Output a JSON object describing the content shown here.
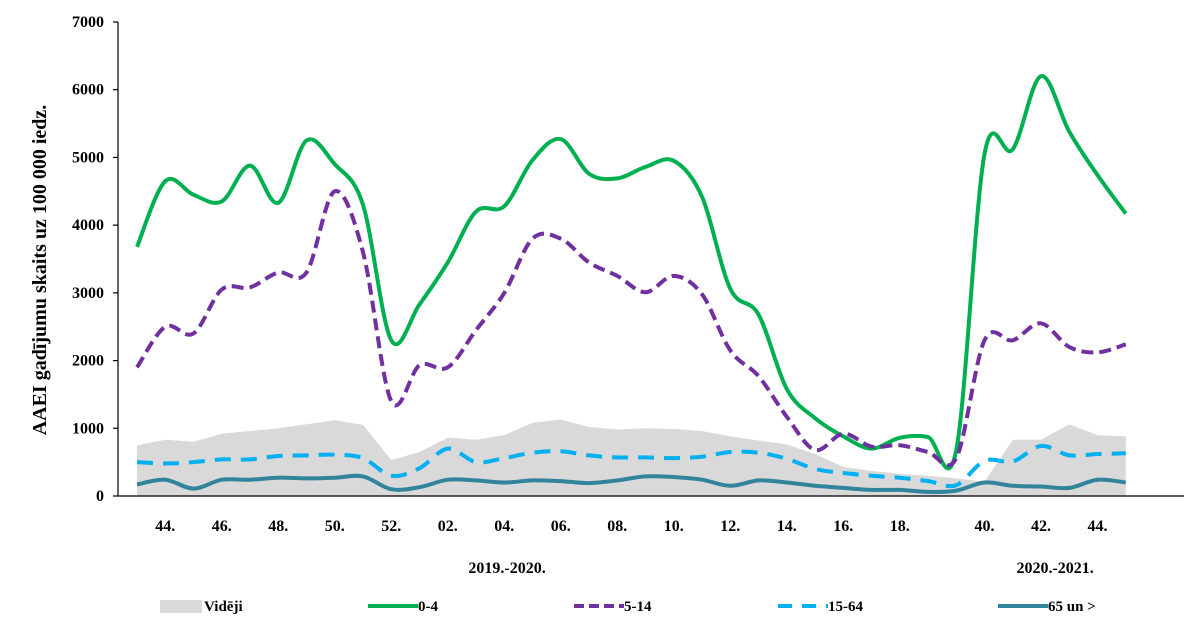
{
  "chart_data": {
    "type": "line",
    "ylabel": "AAEI gadījumu skaits uz 100 000 iedz.",
    "ylim": [
      0,
      7000
    ],
    "yticks": [
      0,
      1000,
      2000,
      3000,
      4000,
      5000,
      6000,
      7000
    ],
    "xtick_labels": [
      "44.",
      "46.",
      "48.",
      "50.",
      "52.",
      "02.",
      "04.",
      "06.",
      "08.",
      "10.",
      "12.",
      "14.",
      "16.",
      "18.",
      "40.",
      "42.",
      "44."
    ],
    "xtick_positions": [
      2,
      4,
      6,
      8,
      10,
      12,
      14,
      16,
      18,
      20,
      22,
      24,
      26,
      28,
      31,
      33,
      35
    ],
    "seasons": [
      {
        "label": "2019.-2020.",
        "center": 14.1
      },
      {
        "label": "2020.-2021.",
        "center": 33.5
      }
    ],
    "x": [
      1,
      2,
      3,
      4,
      5,
      6,
      7,
      8,
      9,
      10,
      11,
      12,
      13,
      14,
      15,
      16,
      17,
      18,
      19,
      20,
      21,
      22,
      23,
      24,
      25,
      26,
      27,
      28,
      29,
      30,
      31,
      32,
      33,
      34,
      35,
      36
    ],
    "series": [
      {
        "name": "Vidēji",
        "style": "area",
        "color": "#d9d9d9",
        "values": [
          750,
          830,
          800,
          920,
          960,
          1000,
          1060,
          1120,
          1050,
          530,
          650,
          860,
          830,
          900,
          1080,
          1130,
          1020,
          980,
          1000,
          990,
          960,
          880,
          820,
          760,
          620,
          430,
          370,
          330,
          300,
          260,
          210,
          830,
          830,
          1060,
          900,
          880
        ]
      },
      {
        "name": "0-4",
        "style": "solid",
        "color": "#00b050",
        "values": [
          3680,
          4650,
          4450,
          4350,
          4880,
          4330,
          5250,
          4900,
          4300,
          2300,
          2830,
          3450,
          4200,
          4280,
          4960,
          5270,
          4760,
          4690,
          4860,
          4950,
          4420,
          3060,
          2680,
          1580,
          1150,
          880,
          700,
          860,
          870,
          680,
          5050,
          5120,
          6200,
          5380,
          4740,
          4170
        ]
      },
      {
        "name": "5-14",
        "style": "dashed",
        "color": "#7030a0",
        "values": [
          1900,
          2500,
          2400,
          3050,
          3080,
          3300,
          3300,
          4500,
          3600,
          1400,
          1930,
          1900,
          2450,
          3000,
          3800,
          3800,
          3450,
          3250,
          3010,
          3250,
          2980,
          2150,
          1770,
          1170,
          680,
          920,
          730,
          750,
          650,
          560,
          2300,
          2300,
          2550,
          2200,
          2120,
          2240
        ]
      },
      {
        "name": "15-64",
        "style": "dashed",
        "color": "#00b0f0",
        "values": [
          500,
          480,
          500,
          540,
          540,
          590,
          600,
          610,
          560,
          300,
          410,
          700,
          500,
          560,
          640,
          660,
          600,
          570,
          570,
          560,
          580,
          650,
          640,
          550,
          400,
          340,
          300,
          270,
          220,
          160,
          520,
          510,
          740,
          600,
          620,
          630
        ]
      },
      {
        "name": "65 un >",
        "style": "solid",
        "color": "#31849b",
        "values": [
          170,
          240,
          110,
          240,
          240,
          270,
          260,
          270,
          290,
          100,
          130,
          240,
          230,
          200,
          230,
          220,
          190,
          230,
          290,
          280,
          240,
          150,
          230,
          200,
          150,
          120,
          90,
          90,
          60,
          80,
          200,
          150,
          140,
          120,
          240,
          200
        ]
      }
    ]
  }
}
